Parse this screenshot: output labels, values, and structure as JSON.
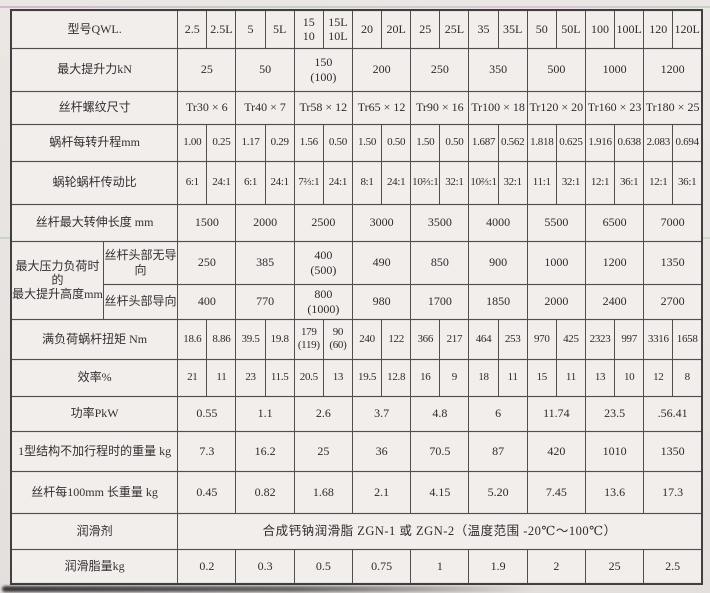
{
  "colors": {
    "paper": "#e8e4e1",
    "cell": "#f1eeeb",
    "border": "#524e4d",
    "ink": "#2e2a2d"
  },
  "table": {
    "rows": {
      "model": {
        "label": "型号QWL.",
        "values": [
          "2.5",
          "2.5L",
          "5",
          "5L",
          "15\n10",
          "15L\n10L",
          "20",
          "20L",
          "25",
          "25L",
          "35",
          "35L",
          "50",
          "50L",
          "100",
          "100L",
          "120",
          "120L"
        ]
      },
      "max_force": {
        "label": "最大提升力kN",
        "values": [
          "25",
          "50",
          "150\n(100)",
          "200",
          "250",
          "350",
          "500",
          "1000",
          "1200"
        ]
      },
      "thread": {
        "label": "丝杆螺纹尺寸",
        "values": [
          "Tr30 × 6",
          "Tr40 × 7",
          "Tr58 × 12",
          "Tr65 × 12",
          "Tr90 × 16",
          "Tr100 × 18",
          "Tr120 × 20",
          "Tr160 × 23",
          "Tr180 × 25"
        ]
      },
      "lift_per_rev": {
        "label": "蜗杆每转升程mm",
        "values": [
          "1.00",
          "0.25",
          "1.17",
          "0.29",
          "1.56",
          "0.50",
          "1.50",
          "0.50",
          "1.50",
          "0.50",
          "1.687",
          "0.562",
          "1.818",
          "0.625",
          "1.916",
          "0.638",
          "2.083",
          "0.694"
        ]
      },
      "ratio": {
        "label": "蜗轮蜗杆传动比",
        "values": [
          "6:1",
          "24:1",
          "6:1",
          "24:1",
          "7⅔:1",
          "24:1",
          "8:1",
          "24:1",
          "10⅔:1",
          "32:1",
          "10⅔:1",
          "32:1",
          "11:1",
          "32:1",
          "12:1",
          "36:1",
          "12:1",
          "36:1"
        ]
      },
      "max_length": {
        "label": "丝杆最大转伸长度 mm",
        "values": [
          "1500",
          "2000",
          "2500",
          "3000",
          "3500",
          "4000",
          "5500",
          "6500",
          "7000"
        ]
      },
      "max_height": {
        "label": "最大压力负荷时的\n最大提升高度mm",
        "sub_rows": [
          {
            "label": "丝杆头部无导向",
            "values": [
              "250",
              "385",
              "400\n(500)",
              "490",
              "850",
              "900",
              "1000",
              "1200",
              "1350"
            ]
          },
          {
            "label": "丝杆头部导向",
            "values": [
              "400",
              "770",
              "800\n(1000)",
              "980",
              "1700",
              "1850",
              "2000",
              "2400",
              "2700"
            ]
          }
        ]
      },
      "torque": {
        "label": "满负荷蜗杆扭矩  Nm",
        "values": [
          "18.6",
          "8.86",
          "39.5",
          "19.8",
          "179\n(119)",
          "90\n(60)",
          "240",
          "122",
          "366",
          "217",
          "464",
          "253",
          "970",
          "425",
          "2323",
          "997",
          "3316",
          "1658"
        ]
      },
      "efficiency": {
        "label": "效率%",
        "values": [
          "21",
          "11",
          "23",
          "11.5",
          "20.5",
          "13",
          "19.5",
          "12.8",
          "16",
          "9",
          "18",
          "11",
          "15",
          "11",
          "13",
          "10",
          "12",
          "8"
        ]
      },
      "power": {
        "label": "功率PkW",
        "values": [
          "0.55",
          "1.1",
          "2.6",
          "3.7",
          "4.8",
          "6",
          "11.74",
          "23.5",
          ".56.41"
        ]
      },
      "weight": {
        "label": "1型结构不加行程时的重量 kg",
        "values": [
          "7.3",
          "16.2",
          "25",
          "36",
          "70.5",
          "87",
          "420",
          "1010",
          "1350"
        ]
      },
      "screw_weight": {
        "label": "丝杆每100mm 长重量 kg",
        "values": [
          "0.45",
          "0.82",
          "1.68",
          "2.1",
          "4.15",
          "5.20",
          "7.45",
          "13.6",
          "17.3"
        ]
      },
      "lubricant": {
        "label": "润滑剂",
        "value": "合成钙钠润滑脂 ZGN-1 或 ZGN-2（温度范围 -20℃～100℃）"
      },
      "grease": {
        "label": "润滑脂量kg",
        "values": [
          "0.2",
          "0.3",
          "0.5",
          "0.75",
          "1",
          "1.9",
          "2",
          "25",
          "2.5"
        ]
      }
    }
  }
}
